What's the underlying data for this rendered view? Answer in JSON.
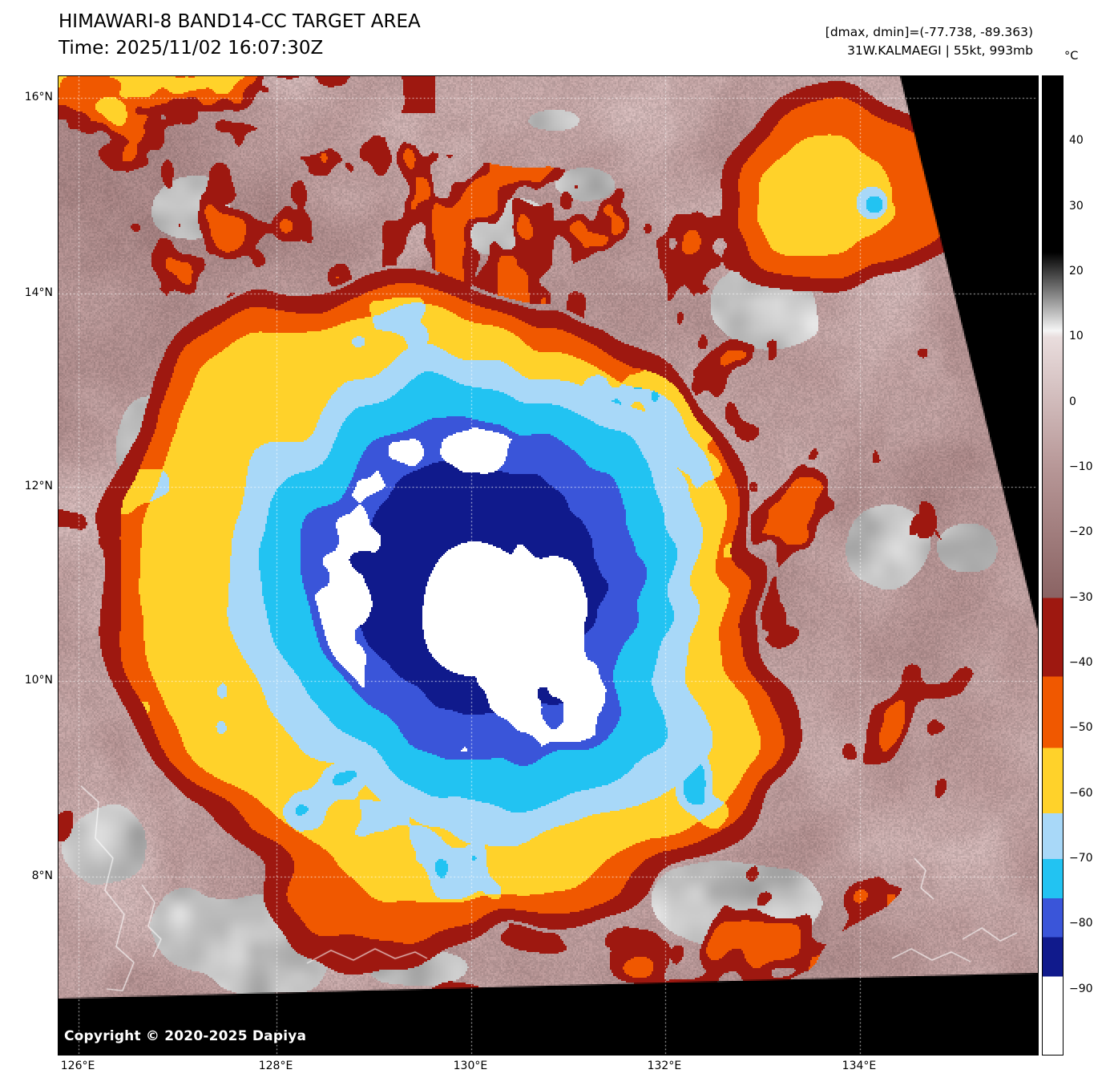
{
  "header": {
    "title": "HIMAWARI-8 BAND14-CC TARGET AREA",
    "time": "Time: 2025/11/02 16:07:30Z",
    "metrics": "[dmax, dmin]=(-77.738, -89.363)",
    "storm": "31W.KALMAEGI | 55kt, 993mb"
  },
  "map": {
    "copyright": "Copyright © 2020-2025 Dapiya",
    "grid_color": "#ffffff",
    "scan_edge_color": "#000000",
    "x_axis": {
      "labels": [
        "126°E",
        "128°E",
        "130°E",
        "132°E",
        "134°E"
      ],
      "fracs": [
        0.0205,
        0.2226,
        0.4214,
        0.6194,
        0.8183
      ]
    },
    "y_axis": {
      "labels": [
        "16°N",
        "14°N",
        "12°N",
        "10°N",
        "8°N"
      ],
      "fracs": [
        0.0221,
        0.2221,
        0.4197,
        0.618,
        0.818
      ]
    }
  },
  "colorbar": {
    "unit": "°C",
    "domain": [
      50,
      -100
    ],
    "ticks": [
      {
        "label": "40",
        "value": 40
      },
      {
        "label": "30",
        "value": 30
      },
      {
        "label": "20",
        "value": 20
      },
      {
        "label": "10",
        "value": 10
      },
      {
        "label": "0",
        "value": 0
      },
      {
        "label": "−10",
        "value": -10
      },
      {
        "label": "−20",
        "value": -20
      },
      {
        "label": "−30",
        "value": -30
      },
      {
        "label": "−40",
        "value": -40
      },
      {
        "label": "−50",
        "value": -50
      },
      {
        "label": "−60",
        "value": -60
      },
      {
        "label": "−70",
        "value": -70
      },
      {
        "label": "−80",
        "value": -80
      },
      {
        "label": "−90",
        "value": -90
      }
    ],
    "gradient": [
      [
        50,
        "#000000"
      ],
      [
        23,
        "#000000"
      ],
      [
        11,
        "#f5f5f5"
      ],
      [
        10,
        "#e9dddd"
      ],
      [
        -10,
        "#b79797"
      ],
      [
        -30,
        "#8a6363"
      ],
      [
        -30,
        "#9e1810"
      ],
      [
        -42,
        "#9e1810"
      ],
      [
        -42,
        "#f05800"
      ],
      [
        -53,
        "#f05800"
      ],
      [
        -53,
        "#ffd22a"
      ],
      [
        -63,
        "#ffd22a"
      ],
      [
        -63,
        "#a8d8f8"
      ],
      [
        -70,
        "#a8d8f8"
      ],
      [
        -70,
        "#22c3f2"
      ],
      [
        -76,
        "#22c3f2"
      ],
      [
        -76,
        "#3a55d9"
      ],
      [
        -82,
        "#3a55d9"
      ],
      [
        -82,
        "#101a8c"
      ],
      [
        -88,
        "#101a8c"
      ],
      [
        -88,
        "#ffffff"
      ],
      [
        -100,
        "#ffffff"
      ]
    ]
  },
  "enhancement": {
    "warm_ramp": [
      [
        12,
        "#eadddd"
      ],
      [
        0,
        "#d2baba"
      ],
      [
        -12,
        "#b79797"
      ],
      [
        -22,
        "#a07d7d"
      ],
      [
        -30,
        "#8a6363"
      ]
    ],
    "cold_bands": [
      [
        -30,
        "#9e1810"
      ],
      [
        -42,
        "#f05800"
      ],
      [
        -53,
        "#ffd22a"
      ],
      [
        -63,
        "#a8d8f8"
      ],
      [
        -70,
        "#22c3f2"
      ],
      [
        -76,
        "#3a55d9"
      ],
      [
        -82,
        "#101a8c"
      ],
      [
        -88,
        "#ffffff"
      ]
    ]
  }
}
